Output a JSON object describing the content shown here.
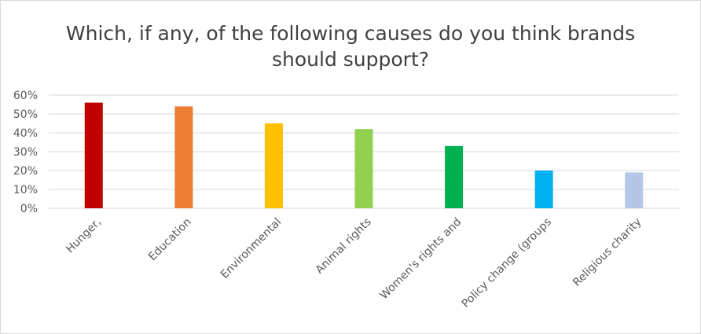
{
  "chart_data": {
    "type": "bar",
    "title_lines": [
      "Which, if any, of the following causes do you think brands",
      "should support?"
    ],
    "xlabel": "",
    "ylabel": "",
    "categories": [
      "Hunger,",
      "Education",
      "Environmental",
      "Animal rights",
      "Women's rights and",
      "Policy change (groups",
      "Religious charity"
    ],
    "values": [
      56,
      54,
      45,
      42,
      33,
      20,
      19
    ],
    "unit": "%",
    "ylim": [
      0,
      60
    ],
    "yticks": [
      0,
      10,
      20,
      30,
      40,
      50,
      60
    ],
    "ytick_labels": [
      "0%",
      "10%",
      "20%",
      "30%",
      "40%",
      "50%",
      "60%"
    ],
    "grid": true,
    "legend": "none",
    "colors": [
      "#c00000",
      "#ed7d31",
      "#ffc000",
      "#92d050",
      "#00b050",
      "#00b0f0",
      "#b4c7e7"
    ]
  }
}
